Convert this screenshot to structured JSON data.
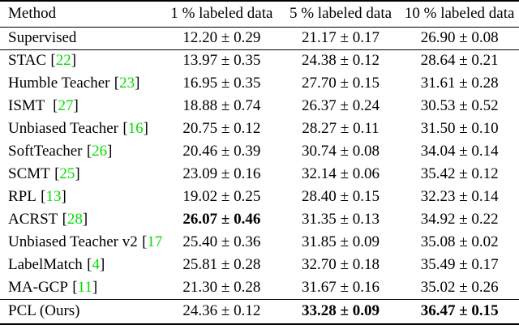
{
  "colors": {
    "background": "#ffffff",
    "text": "#000000",
    "rule": "#000000",
    "citation_green": "#00e000"
  },
  "table": {
    "columns": [
      "Method",
      "1 % labeled data",
      "5 % labeled data",
      "10 % labeled data"
    ],
    "citation_bracket_open": "[",
    "citation_bracket_close": "]",
    "rows": [
      {
        "method": "Supervised",
        "cite": null,
        "group": "baseline",
        "cells": [
          {
            "text": "12.20 ± 0.29",
            "bold": false
          },
          {
            "text": "21.17 ± 0.17",
            "bold": false
          },
          {
            "text": "26.90 ± 0.08",
            "bold": false
          }
        ]
      },
      {
        "method": "STAC",
        "cite": "22",
        "group": "comparison",
        "cells": [
          {
            "text": "13.97 ± 0.35",
            "bold": false
          },
          {
            "text": "24.38 ± 0.12",
            "bold": false
          },
          {
            "text": "28.64 ± 0.21",
            "bold": false
          }
        ]
      },
      {
        "method": "Humble Teacher",
        "cite": "23",
        "group": "comparison",
        "cells": [
          {
            "text": "16.95 ± 0.35",
            "bold": false
          },
          {
            "text": "27.70 ± 0.15",
            "bold": false
          },
          {
            "text": "31.61 ± 0.28",
            "bold": false
          }
        ]
      },
      {
        "method": "ISMT ",
        "cite": "27",
        "group": "comparison",
        "cells": [
          {
            "text": "18.88 ± 0.74",
            "bold": false
          },
          {
            "text": "26.37 ± 0.24",
            "bold": false
          },
          {
            "text": "30.53 ± 0.52",
            "bold": false
          }
        ]
      },
      {
        "method": "Unbiased Teacher",
        "cite": "16",
        "group": "comparison",
        "cells": [
          {
            "text": "20.75 ± 0.12",
            "bold": false
          },
          {
            "text": "28.27 ± 0.11",
            "bold": false
          },
          {
            "text": "31.50 ± 0.10",
            "bold": false
          }
        ]
      },
      {
        "method": "SoftTeacher",
        "cite": "26",
        "group": "comparison",
        "cells": [
          {
            "text": "20.46 ± 0.39",
            "bold": false
          },
          {
            "text": "30.74 ± 0.08",
            "bold": false
          },
          {
            "text": "34.04 ± 0.14",
            "bold": false
          }
        ]
      },
      {
        "method": "SCMT",
        "cite": "25",
        "group": "comparison",
        "cells": [
          {
            "text": "23.09 ± 0.16",
            "bold": false
          },
          {
            "text": "32.14 ± 0.06",
            "bold": false
          },
          {
            "text": "35.42 ± 0.12",
            "bold": false
          }
        ]
      },
      {
        "method": "RPL",
        "cite": "13",
        "group": "comparison",
        "cells": [
          {
            "text": "19.02 ± 0.25",
            "bold": false
          },
          {
            "text": "28.40 ± 0.15",
            "bold": false
          },
          {
            "text": "32.23 ± 0.14",
            "bold": false
          }
        ]
      },
      {
        "method": "ACRST",
        "cite": "28",
        "group": "comparison",
        "cells": [
          {
            "text": "26.07 ± 0.46",
            "bold": true
          },
          {
            "text": "31.35 ± 0.13",
            "bold": false
          },
          {
            "text": "34.92 ± 0.22",
            "bold": false
          }
        ]
      },
      {
        "method": "Unbiased Teacher v2",
        "cite": "17",
        "group": "comparison",
        "cells": [
          {
            "text": "25.40 ± 0.36",
            "bold": false
          },
          {
            "text": "31.85 ± 0.09",
            "bold": false
          },
          {
            "text": "35.08 ± 0.02",
            "bold": false
          }
        ]
      },
      {
        "method": "LabelMatch",
        "cite": "4",
        "group": "comparison",
        "cells": [
          {
            "text": "25.81 ± 0.28",
            "bold": false
          },
          {
            "text": "32.70 ± 0.18",
            "bold": false
          },
          {
            "text": "35.49 ± 0.17",
            "bold": false
          }
        ]
      },
      {
        "method": "MA-GCP",
        "cite": "11",
        "group": "comparison",
        "cells": [
          {
            "text": "21.30 ± 0.28",
            "bold": false
          },
          {
            "text": "31.67 ± 0.16",
            "bold": false
          },
          {
            "text": "35.02 ± 0.26",
            "bold": false
          }
        ]
      },
      {
        "method": "PCL (Ours)",
        "cite": null,
        "group": "ours",
        "cells": [
          {
            "text": "24.36 ± 0.12",
            "bold": false
          },
          {
            "text": "33.28 ± 0.09",
            "bold": true
          },
          {
            "text": "36.47 ± 0.15",
            "bold": true
          }
        ]
      }
    ]
  }
}
